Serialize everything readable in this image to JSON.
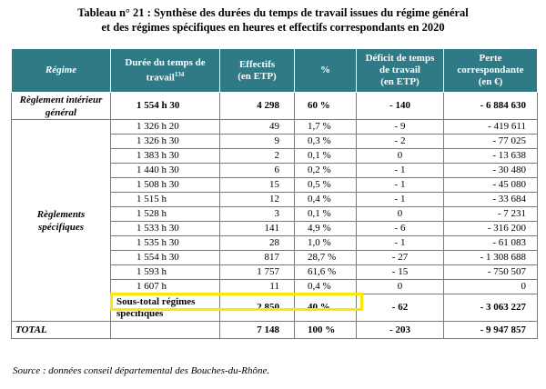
{
  "title": {
    "line1": "Tableau n° 21 : Synthèse des durées du temps de travail issues du régime général",
    "line2": "et des régimes spécifiques en heures et effectifs correspondants en 2020"
  },
  "headers": {
    "regime": "Régime",
    "duree": "Durée du temps de travail",
    "duree_note": "134",
    "effectifs_l1": "Effectifs",
    "effectifs_l2": "(en ETP)",
    "pct": "%",
    "deficit_l1": "Déficit de temps",
    "deficit_l2": "de travail",
    "deficit_l3": "(en ETP)",
    "perte_l1": "Perte",
    "perte_l2": "correspondante",
    "perte_l3": "(en €)"
  },
  "main_row": {
    "regime_l1": "Règlement intérieur",
    "regime_l2": "général",
    "duree": "1 554 h 30",
    "effectifs": "4 298",
    "pct": "60 %",
    "deficit": "- 140",
    "perte": "- 6 884 630"
  },
  "specific_label_l1": "Règlements",
  "specific_label_l2": "spécifiques",
  "rows": [
    {
      "duree": "1 326 h 20",
      "effectifs": "49",
      "pct": "1,7 %",
      "deficit": "- 9",
      "perte": "- 419 611"
    },
    {
      "duree": "1 326 h 30",
      "effectifs": "9",
      "pct": "0,3 %",
      "deficit": "- 2",
      "perte": "- 77 025"
    },
    {
      "duree": "1 383 h 30",
      "effectifs": "2",
      "pct": "0,1 %",
      "deficit": "0",
      "perte": "- 13 638"
    },
    {
      "duree": "1 440 h 30",
      "effectifs": "6",
      "pct": "0,2 %",
      "deficit": "- 1",
      "perte": "- 30 480"
    },
    {
      "duree": "1 508 h 30",
      "effectifs": "15",
      "pct": "0,5 %",
      "deficit": "- 1",
      "perte": "- 45 080"
    },
    {
      "duree": "1 515 h",
      "effectifs": "12",
      "pct": "0,4 %",
      "deficit": "- 1",
      "perte": "- 33 684"
    },
    {
      "duree": "1 528 h",
      "effectifs": "3",
      "pct": "0,1 %",
      "deficit": "0",
      "perte": "- 7 231"
    },
    {
      "duree": "1 533 h 30",
      "effectifs": "141",
      "pct": "4,9 %",
      "deficit": "- 6",
      "perte": "- 316 200"
    },
    {
      "duree": "1 535 h 30",
      "effectifs": "28",
      "pct": "1,0 %",
      "deficit": "- 1",
      "perte": "- 61 083"
    },
    {
      "duree": "1 554 h 30",
      "effectifs": "817",
      "pct": "28,7 %",
      "deficit": "- 27",
      "perte": "- 1 308 688"
    },
    {
      "duree": "1 593 h",
      "effectifs": "1 757",
      "pct": "61,6 %",
      "deficit": "- 15",
      "perte": "- 750 507"
    },
    {
      "duree": "1 607 h",
      "effectifs": "11",
      "pct": "0,4 %",
      "deficit": "0",
      "perte": "0"
    }
  ],
  "subtotal": {
    "label_l1": "Sous-total régimes",
    "label_l2": "spécifiques",
    "effectifs": "2 850",
    "pct": "40 %",
    "deficit": "- 62",
    "perte": "- 3 063 227"
  },
  "total": {
    "label": "TOTAL",
    "effectifs": "7 148",
    "pct": "100 %",
    "deficit": "- 203",
    "perte": "- 9 947 857"
  },
  "source": "Source : données conseil départemental des Bouches-du-Rhône.",
  "colors": {
    "header_bg": "#2f7a86",
    "highlight": "#ffe800"
  }
}
